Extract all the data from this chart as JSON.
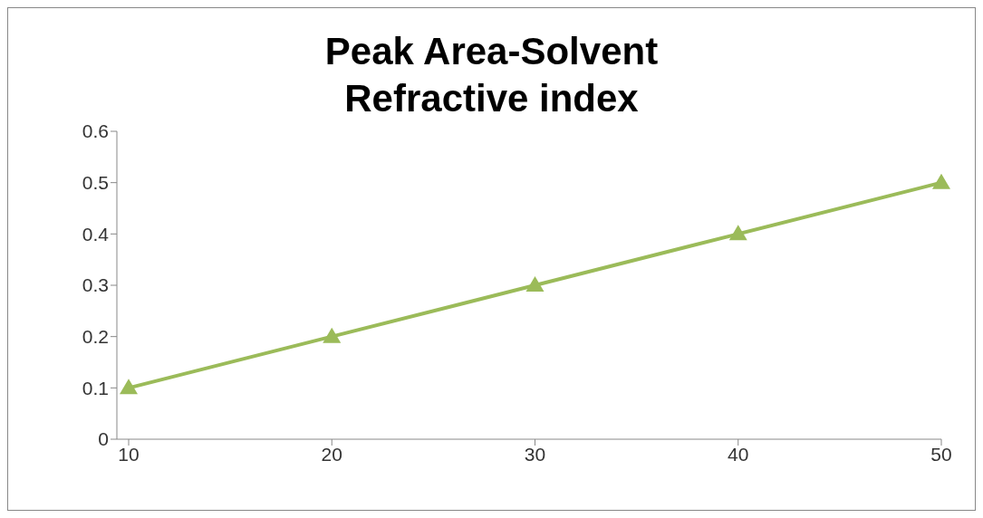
{
  "chart_data": {
    "type": "line",
    "title": "Peak Area-Solvent Refractive index",
    "categories": [
      "10",
      "20",
      "30",
      "40",
      "50"
    ],
    "series": [
      {
        "color": "#9bbb59",
        "values": [
          0.1,
          0.2,
          0.3,
          0.4,
          0.5
        ]
      }
    ],
    "ylim": [
      0,
      0.6
    ],
    "yticks": [
      0,
      0.1,
      0.2,
      0.3,
      0.4,
      0.5,
      0.6
    ],
    "grid": false,
    "legend": false,
    "marker": "triangle",
    "line_style": "solid"
  }
}
